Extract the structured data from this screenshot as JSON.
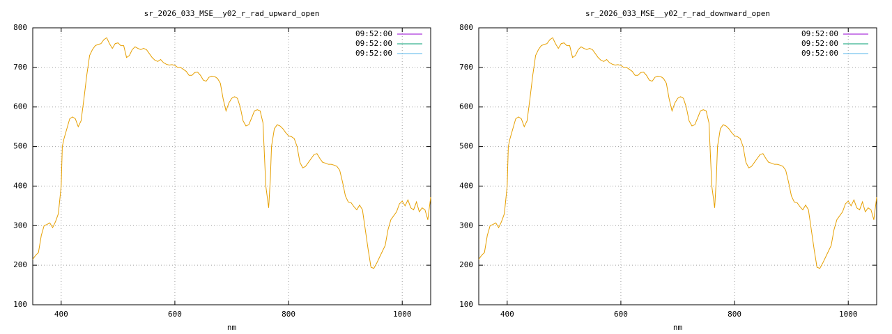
{
  "chart_data": [
    {
      "type": "line",
      "title": "sr_2026_033_MSE__y02_r_rad_upward_open",
      "x_label": "nm",
      "xlim": [
        350,
        1050
      ],
      "xticks": [
        400,
        600,
        800,
        1000
      ],
      "ylim": [
        100,
        800
      ],
      "yticks": [
        100,
        200,
        300,
        400,
        500,
        600,
        700,
        800
      ],
      "grid": true,
      "legend_position": "top-right",
      "legend": [
        {
          "name": "09:52:00",
          "color": "#9400d3"
        },
        {
          "name": "09:52:00",
          "color": "#009e73"
        },
        {
          "name": "09:52:00",
          "color": "#56b4e9"
        }
      ],
      "x": [
        350,
        355,
        360,
        365,
        370,
        375,
        380,
        385,
        390,
        395,
        400,
        402,
        405,
        410,
        415,
        420,
        425,
        430,
        435,
        440,
        445,
        450,
        455,
        460,
        465,
        470,
        475,
        480,
        485,
        490,
        495,
        500,
        505,
        510,
        515,
        520,
        525,
        530,
        535,
        540,
        545,
        550,
        555,
        560,
        565,
        570,
        575,
        580,
        585,
        590,
        595,
        600,
        605,
        610,
        615,
        620,
        625,
        630,
        635,
        640,
        645,
        650,
        655,
        660,
        665,
        670,
        675,
        680,
        685,
        690,
        695,
        700,
        705,
        710,
        715,
        720,
        725,
        730,
        735,
        740,
        745,
        750,
        755,
        760,
        765,
        768,
        770,
        775,
        780,
        785,
        790,
        795,
        800,
        805,
        810,
        815,
        820,
        825,
        830,
        835,
        840,
        845,
        850,
        855,
        860,
        865,
        870,
        875,
        880,
        885,
        890,
        895,
        900,
        905,
        910,
        915,
        920,
        925,
        930,
        935,
        940,
        945,
        950,
        955,
        960,
        965,
        970,
        975,
        980,
        985,
        990,
        995,
        1000,
        1005,
        1010,
        1015,
        1020,
        1025,
        1030,
        1035,
        1040,
        1045,
        1050
      ],
      "series": [
        {
          "color": "#e69f00",
          "values": [
            215,
            225,
            232,
            275,
            300,
            303,
            307,
            295,
            310,
            330,
            400,
            500,
            520,
            545,
            570,
            575,
            570,
            550,
            565,
            620,
            680,
            730,
            745,
            755,
            758,
            760,
            770,
            775,
            760,
            748,
            760,
            762,
            755,
            755,
            725,
            730,
            745,
            752,
            748,
            745,
            748,
            745,
            735,
            725,
            718,
            715,
            720,
            712,
            708,
            706,
            707,
            705,
            700,
            700,
            695,
            690,
            680,
            680,
            687,
            688,
            680,
            668,
            665,
            675,
            678,
            677,
            672,
            660,
            620,
            590,
            610,
            622,
            626,
            622,
            600,
            565,
            552,
            555,
            572,
            590,
            593,
            590,
            560,
            400,
            345,
            420,
            500,
            545,
            555,
            552,
            545,
            535,
            527,
            525,
            520,
            500,
            460,
            446,
            450,
            460,
            470,
            480,
            482,
            470,
            460,
            458,
            455,
            455,
            453,
            450,
            440,
            410,
            375,
            360,
            358,
            348,
            340,
            352,
            340,
            290,
            240,
            195,
            192,
            205,
            220,
            235,
            250,
            290,
            315,
            325,
            335,
            355,
            362,
            350,
            365,
            345,
            340,
            360,
            335,
            345,
            340,
            315,
            372
          ]
        }
      ]
    },
    {
      "type": "line",
      "title": "sr_2026_033_MSE__y02_r_rad_downward_open",
      "x_label": "nm",
      "xlim": [
        350,
        1050
      ],
      "xticks": [
        400,
        600,
        800,
        1000
      ],
      "ylim": [
        100,
        800
      ],
      "yticks": [
        100,
        200,
        300,
        400,
        500,
        600,
        700,
        800
      ],
      "grid": true,
      "legend_position": "top-right",
      "legend": [
        {
          "name": "09:52:00",
          "color": "#9400d3"
        },
        {
          "name": "09:52:00",
          "color": "#009e73"
        },
        {
          "name": "09:52:00",
          "color": "#56b4e9"
        }
      ],
      "x": [
        350,
        355,
        360,
        365,
        370,
        375,
        380,
        385,
        390,
        395,
        400,
        402,
        405,
        410,
        415,
        420,
        425,
        430,
        435,
        440,
        445,
        450,
        455,
        460,
        465,
        470,
        475,
        480,
        485,
        490,
        495,
        500,
        505,
        510,
        515,
        520,
        525,
        530,
        535,
        540,
        545,
        550,
        555,
        560,
        565,
        570,
        575,
        580,
        585,
        590,
        595,
        600,
        605,
        610,
        615,
        620,
        625,
        630,
        635,
        640,
        645,
        650,
        655,
        660,
        665,
        670,
        675,
        680,
        685,
        690,
        695,
        700,
        705,
        710,
        715,
        720,
        725,
        730,
        735,
        740,
        745,
        750,
        755,
        760,
        765,
        768,
        770,
        775,
        780,
        785,
        790,
        795,
        800,
        805,
        810,
        815,
        820,
        825,
        830,
        835,
        840,
        845,
        850,
        855,
        860,
        865,
        870,
        875,
        880,
        885,
        890,
        895,
        900,
        905,
        910,
        915,
        920,
        925,
        930,
        935,
        940,
        945,
        950,
        955,
        960,
        965,
        970,
        975,
        980,
        985,
        990,
        995,
        1000,
        1005,
        1010,
        1015,
        1020,
        1025,
        1030,
        1035,
        1040,
        1045,
        1050
      ],
      "series": [
        {
          "color": "#e69f00",
          "values": [
            215,
            225,
            232,
            275,
            300,
            303,
            307,
            295,
            310,
            330,
            400,
            500,
            520,
            545,
            570,
            575,
            570,
            550,
            565,
            620,
            680,
            730,
            745,
            755,
            758,
            760,
            770,
            775,
            760,
            748,
            760,
            762,
            755,
            755,
            725,
            730,
            745,
            752,
            748,
            745,
            748,
            745,
            735,
            725,
            718,
            715,
            720,
            712,
            708,
            706,
            707,
            705,
            700,
            700,
            695,
            690,
            680,
            680,
            687,
            688,
            680,
            668,
            665,
            675,
            678,
            677,
            672,
            660,
            620,
            590,
            610,
            622,
            626,
            622,
            600,
            565,
            552,
            555,
            572,
            590,
            593,
            590,
            560,
            400,
            345,
            420,
            500,
            545,
            555,
            552,
            545,
            535,
            527,
            525,
            520,
            500,
            460,
            446,
            450,
            460,
            470,
            480,
            482,
            470,
            460,
            458,
            455,
            455,
            453,
            450,
            440,
            410,
            375,
            360,
            358,
            348,
            340,
            352,
            340,
            290,
            240,
            195,
            192,
            205,
            220,
            235,
            250,
            290,
            315,
            325,
            335,
            355,
            362,
            350,
            365,
            345,
            340,
            360,
            335,
            345,
            340,
            315,
            372
          ]
        }
      ]
    }
  ]
}
